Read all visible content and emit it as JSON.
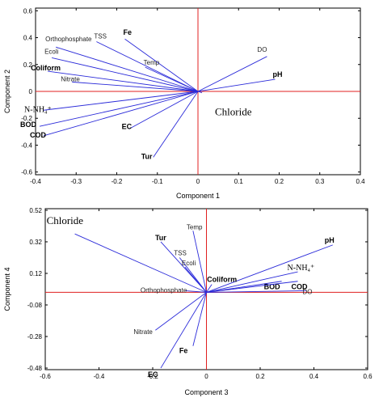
{
  "chart_data": [
    {
      "type": "scatter",
      "subtype": "biplot-vectors",
      "xlabel": "Component 1",
      "ylabel": "Component 2",
      "xlim": [
        -0.4,
        0.4
      ],
      "ylim": [
        -0.62,
        0.62
      ],
      "xticks": [
        "-0.4",
        "-0.3",
        "-0.2",
        "-0.1",
        "0",
        "0.1",
        "0.2",
        "0.3",
        "0.4"
      ],
      "yticks": [
        "0.6",
        "0.4",
        "0.2",
        "0",
        "-0.2",
        "-0.4",
        "-0.6"
      ],
      "grid": false,
      "reference_lines": {
        "x": 0,
        "y": 0,
        "color": "#e02020"
      },
      "vector_color": "#2b2bd9",
      "vectors": [
        {
          "label": "TSS",
          "x": -0.25,
          "y": 0.37,
          "style": "normal"
        },
        {
          "label": "Fe",
          "x": -0.18,
          "y": 0.39,
          "style": "bold"
        },
        {
          "label": "Orthophosphate",
          "x": -0.35,
          "y": 0.33,
          "style": "normal"
        },
        {
          "label": "Ecoli",
          "x": -0.36,
          "y": 0.25,
          "style": "normal"
        },
        {
          "label": "Temp",
          "x": -0.13,
          "y": 0.18,
          "style": "normal"
        },
        {
          "label": "Coliform",
          "x": -0.37,
          "y": 0.15,
          "style": "bold"
        },
        {
          "label": "Nitrate",
          "x": -0.31,
          "y": 0.07,
          "style": "normal"
        },
        {
          "label": "DO",
          "x": 0.17,
          "y": 0.26,
          "style": "normal"
        },
        {
          "label": "pH",
          "x": 0.19,
          "y": 0.09,
          "style": "bold"
        },
        {
          "label": "N-NH₄⁺",
          "x": -0.38,
          "y": -0.14,
          "style": "serif"
        },
        {
          "label": "BOD",
          "x": -0.39,
          "y": -0.26,
          "style": "bold"
        },
        {
          "label": "COD",
          "x": -0.38,
          "y": -0.33,
          "style": "bold"
        },
        {
          "label": "EC",
          "x": -0.17,
          "y": -0.28,
          "style": "bold"
        },
        {
          "label": "Tur",
          "x": -0.11,
          "y": -0.49,
          "style": "bold"
        },
        {
          "label": "Chloride",
          "x": 0.01,
          "y": -0.01,
          "style": "big-serif"
        }
      ]
    },
    {
      "type": "scatter",
      "subtype": "biplot-vectors",
      "xlabel": "Component 3",
      "ylabel": "Component 4",
      "xlim": [
        -0.6,
        0.6
      ],
      "ylim": [
        -0.49,
        0.53
      ],
      "xticks": [
        "-0.6",
        "-0.4",
        "-0.2",
        "0",
        "0.2",
        "0.4",
        "0.6"
      ],
      "yticks": [
        "0.52",
        "0.32",
        "0.12",
        "-0.08",
        "-0.28",
        "-0.48"
      ],
      "grid": false,
      "reference_lines": {
        "x": 0,
        "y": 0,
        "color": "#e02020"
      },
      "vector_color": "#2b2bd9",
      "vectors": [
        {
          "label": "Chloride",
          "x": -0.49,
          "y": 0.37,
          "style": "big-serif"
        },
        {
          "label": "Tur",
          "x": -0.17,
          "y": 0.32,
          "style": "bold"
        },
        {
          "label": "Temp",
          "x": -0.05,
          "y": 0.39,
          "style": "normal"
        },
        {
          "label": "TSS",
          "x": -0.1,
          "y": 0.22,
          "style": "normal"
        },
        {
          "label": "Ecoli",
          "x": -0.08,
          "y": 0.16,
          "style": "normal"
        },
        {
          "label": "pH",
          "x": 0.47,
          "y": 0.3,
          "style": "bold"
        },
        {
          "label": "N-NH₄⁺",
          "x": 0.34,
          "y": 0.13,
          "style": "serif"
        },
        {
          "label": "BOD",
          "x": 0.28,
          "y": 0.07,
          "style": "bold"
        },
        {
          "label": "COD",
          "x": 0.34,
          "y": 0.07,
          "style": "bold"
        },
        {
          "label": "DO",
          "x": 0.37,
          "y": 0.01,
          "style": "normal"
        },
        {
          "label": "Coliform",
          "x": 0.02,
          "y": 0.05,
          "style": "bold"
        },
        {
          "label": "Orthophosphate",
          "x": -0.08,
          "y": 0.01,
          "style": "normal"
        },
        {
          "label": "Nitrate",
          "x": -0.19,
          "y": -0.24,
          "style": "normal"
        },
        {
          "label": "Fe",
          "x": -0.05,
          "y": -0.34,
          "style": "bold"
        },
        {
          "label": "EC",
          "x": -0.17,
          "y": -0.48,
          "style": "bold"
        }
      ]
    }
  ]
}
